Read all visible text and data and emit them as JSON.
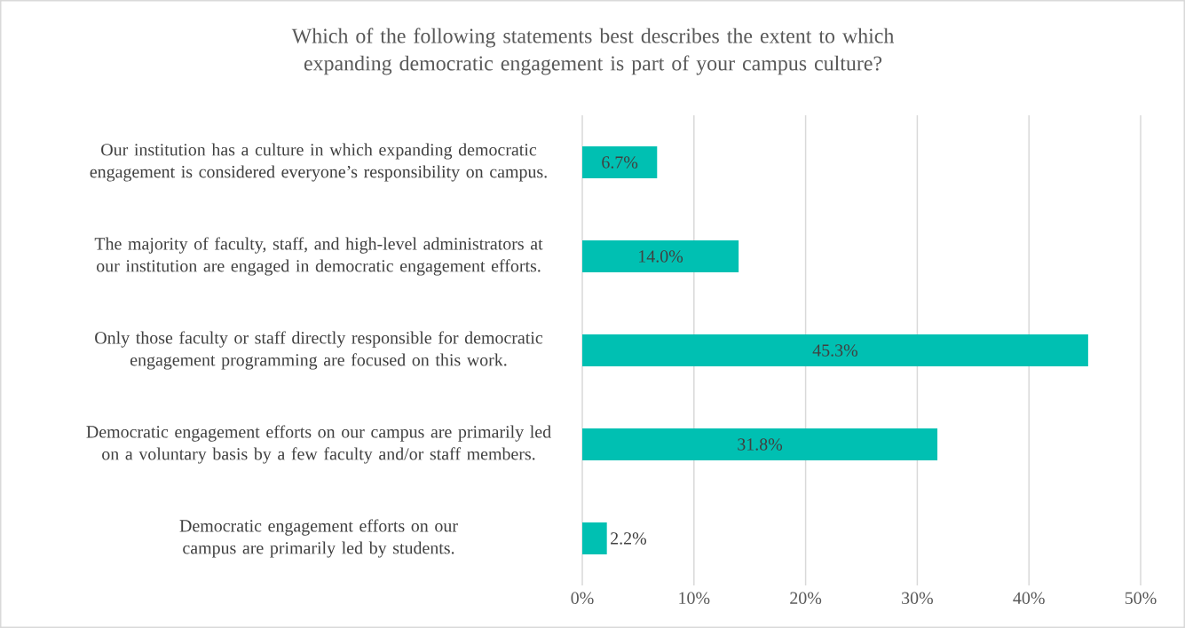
{
  "chart_data": {
    "type": "bar",
    "orientation": "horizontal",
    "title": "Which of the following statements best describes the extent to which expanding democratic engagement is part of your campus culture?",
    "categories": [
      "Our institution has a culture in which expanding democratic engagement is considered everyone’s responsibility on campus.",
      "The majority of faculty, staff, and high-level administrators at our institution are engaged in democratic engagement efforts.",
      "Only those faculty or staff directly responsible for democratic engagement programming are focused on this work.",
      "Democratic engagement efforts on our campus are primarily led on a voluntary basis by a few faculty and/or staff members.",
      "Democratic engagement efforts on our campus are primarily led by students."
    ],
    "values": [
      6.7,
      14.0,
      45.3,
      31.8,
      2.2
    ],
    "value_labels": [
      "6.7%",
      "14.0%",
      "45.3%",
      "31.8%",
      "2.2%"
    ],
    "color": "#00c0b2",
    "xlim": [
      0,
      50
    ],
    "xticks": [
      {
        "value": 0,
        "label": "0%"
      },
      {
        "value": 10,
        "label": "10%"
      },
      {
        "value": 20,
        "label": "20%"
      },
      {
        "value": 30,
        "label": "30%"
      },
      {
        "value": 40,
        "label": "40%"
      },
      {
        "value": 50,
        "label": "50%"
      }
    ],
    "grid": "x"
  }
}
